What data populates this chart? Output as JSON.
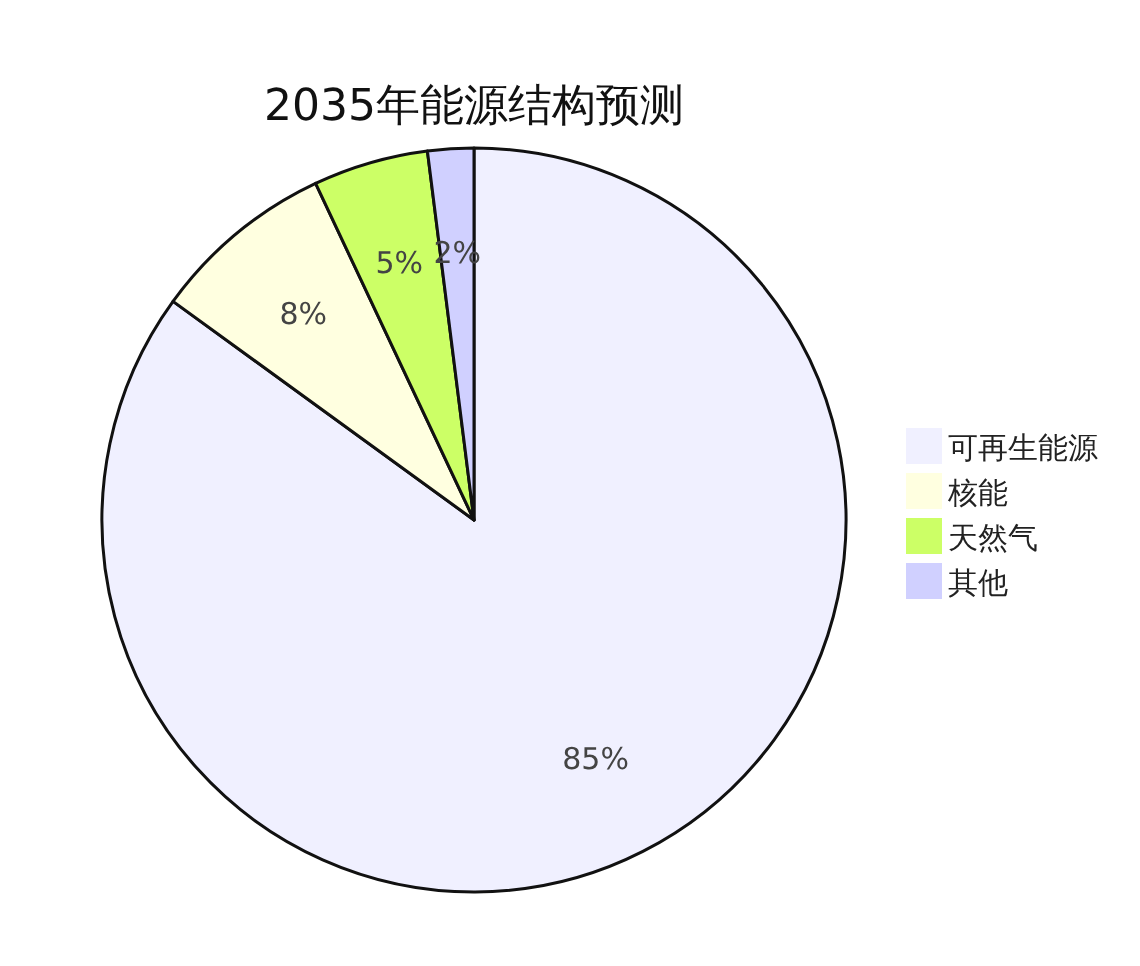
{
  "chart_data": {
    "type": "pie",
    "title": "2035年能源结构预测",
    "categories": [
      "可再生能源",
      "核能",
      "天然气",
      "其他"
    ],
    "values": [
      85,
      8,
      5,
      2
    ],
    "value_labels": [
      "85%",
      "8%",
      "5%",
      "2%"
    ],
    "colors": [
      "#f0f0ff",
      "#ffffe0",
      "#ccff66",
      "#d0d0ff"
    ],
    "legend": "right"
  }
}
